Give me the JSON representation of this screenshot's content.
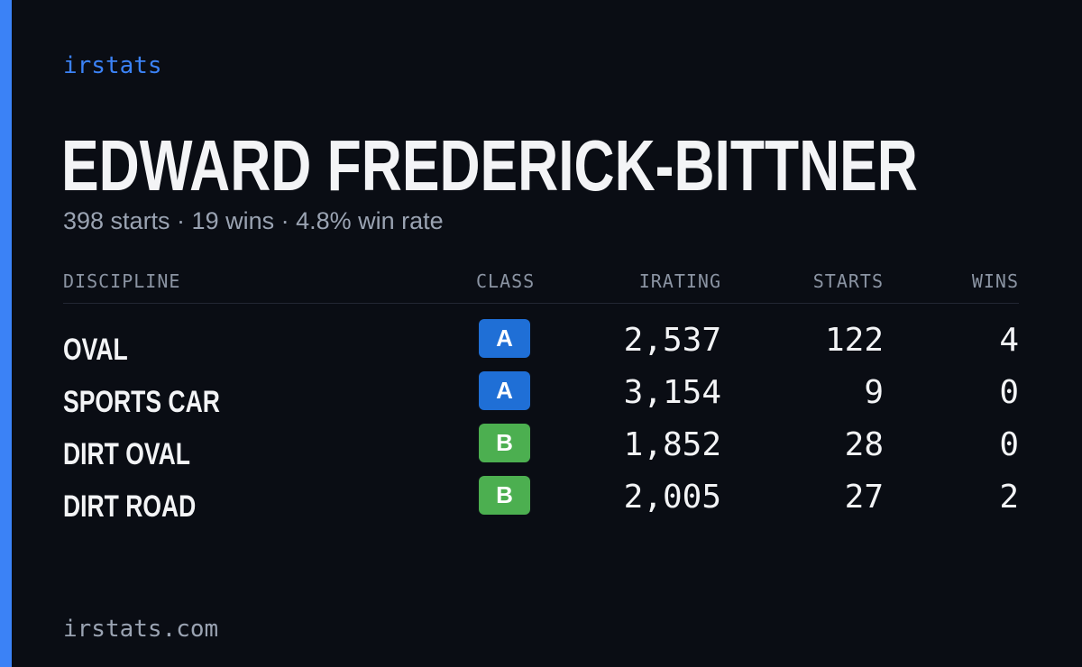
{
  "colors": {
    "background": "#0a0d14",
    "accent": "#3b82f6",
    "class_a": "#1f6fd6",
    "class_b": "#4caf50"
  },
  "brand": "irstats",
  "driver": {
    "name": "EDWARD FREDERICK-BITTNER",
    "summary": "398 starts · 19 wins · 4.8% win rate"
  },
  "table": {
    "headers": {
      "discipline": "DISCIPLINE",
      "class": "CLASS",
      "irating": "IRATING",
      "starts": "STARTS",
      "wins": "WINS"
    },
    "rows": [
      {
        "discipline": "OVAL",
        "class": "A",
        "irating": "2,537",
        "starts": "122",
        "wins": "4"
      },
      {
        "discipline": "SPORTS CAR",
        "class": "A",
        "irating": "3,154",
        "starts": "9",
        "wins": "0"
      },
      {
        "discipline": "DIRT OVAL",
        "class": "B",
        "irating": "1,852",
        "starts": "28",
        "wins": "0"
      },
      {
        "discipline": "DIRT ROAD",
        "class": "B",
        "irating": "2,005",
        "starts": "27",
        "wins": "2"
      }
    ]
  },
  "footer": "irstats.com"
}
